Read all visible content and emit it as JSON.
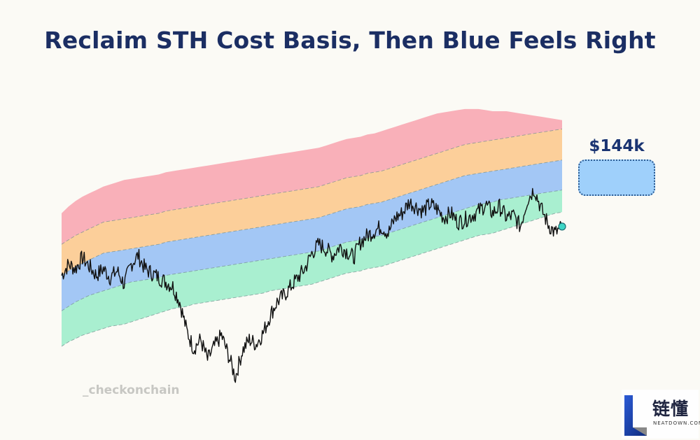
{
  "title": "Reclaim STH Cost Basis, Then Blue Feels Right",
  "callout": {
    "price": "$144k",
    "box_color": "#9fd0fb"
  },
  "watermark": "_checkonchain",
  "logo": {
    "name_cn": "链懂",
    "site": "NEATDOWN.COM"
  },
  "chart_data": {
    "type": "area",
    "x": [
      0,
      1,
      2,
      3,
      4,
      5,
      6,
      7,
      8,
      9,
      10,
      11,
      12,
      13,
      14,
      15,
      16,
      17,
      18,
      19,
      20,
      21,
      22,
      23,
      24,
      25,
      26,
      27,
      28,
      29,
      30,
      31,
      32,
      33,
      34,
      35,
      36,
      37,
      38,
      39,
      40,
      41,
      42,
      43,
      44,
      45,
      46,
      47,
      48,
      49,
      50,
      51,
      52,
      53,
      54,
      55,
      56,
      57,
      58,
      59,
      60,
      61,
      62,
      63,
      64,
      65,
      66,
      67,
      68,
      69,
      70,
      71,
      72
    ],
    "bands": [
      {
        "color": "#a9efd0",
        "lower": [
          -1.2,
          -1.0,
          -0.85,
          -0.7,
          -0.6,
          -0.5,
          -0.4,
          -0.3,
          -0.25,
          -0.2,
          -0.1,
          0,
          0.1,
          0.2,
          0.3,
          0.4,
          0.5,
          0.55,
          0.6,
          0.7,
          0.75,
          0.8,
          0.85,
          0.9,
          0.95,
          1.0,
          1.05,
          1.1,
          1.15,
          1.2,
          1.3,
          1.35,
          1.4,
          1.45,
          1.5,
          1.55,
          1.6,
          1.7,
          1.8,
          1.9,
          2.0,
          2.1,
          2.15,
          2.2,
          2.3,
          2.35,
          2.4,
          2.5,
          2.6,
          2.7,
          2.8,
          2.9,
          3.0,
          3.1,
          3.2,
          3.3,
          3.4,
          3.5,
          3.6,
          3.7,
          3.8,
          3.85,
          3.9,
          4.0,
          4.1,
          4.2,
          4.3,
          4.4,
          4.5,
          4.6,
          4.7,
          4.8,
          4.85
        ]
      },
      {
        "color": "#a3c7f5",
        "lower": [
          0.4,
          0.6,
          0.8,
          0.95,
          1.1,
          1.2,
          1.3,
          1.4,
          1.5,
          1.6,
          1.7,
          1.75,
          1.8,
          1.85,
          1.9,
          2.0,
          2.05,
          2.1,
          2.15,
          2.2,
          2.25,
          2.3,
          2.35,
          2.4,
          2.45,
          2.5,
          2.55,
          2.6,
          2.65,
          2.7,
          2.75,
          2.8,
          2.85,
          2.9,
          2.95,
          3.0,
          3.05,
          3.1,
          3.2,
          3.3,
          3.4,
          3.5,
          3.55,
          3.6,
          3.7,
          3.75,
          3.8,
          3.9,
          4.0,
          4.1,
          4.2,
          4.3,
          4.4,
          4.5,
          4.6,
          4.7,
          4.8,
          4.9,
          5.0,
          5.1,
          5.2,
          5.25,
          5.3,
          5.4,
          5.45,
          5.5,
          5.55,
          5.6,
          5.65,
          5.7,
          5.75,
          5.8,
          5.85
        ]
      },
      {
        "color": "#fccf9a",
        "lower": [
          2.0,
          2.2,
          2.4,
          2.55,
          2.7,
          2.85,
          3.0,
          3.05,
          3.1,
          3.15,
          3.2,
          3.25,
          3.3,
          3.35,
          3.4,
          3.5,
          3.55,
          3.6,
          3.65,
          3.7,
          3.75,
          3.8,
          3.85,
          3.9,
          3.95,
          4.0,
          4.05,
          4.1,
          4.15,
          4.2,
          4.25,
          4.3,
          4.35,
          4.4,
          4.45,
          4.5,
          4.55,
          4.6,
          4.7,
          4.8,
          4.9,
          5.0,
          5.05,
          5.1,
          5.2,
          5.25,
          5.3,
          5.4,
          5.5,
          5.6,
          5.7,
          5.8,
          5.9,
          6.0,
          6.1,
          6.2,
          6.3,
          6.4,
          6.5,
          6.55,
          6.6,
          6.65,
          6.7,
          6.75,
          6.8,
          6.85,
          6.9,
          6.95,
          7.0,
          7.05,
          7.1,
          7.15,
          7.2
        ]
      },
      {
        "color": "#f9b0b9",
        "lower": [
          3.4,
          3.6,
          3.8,
          3.95,
          4.1,
          4.25,
          4.4,
          4.45,
          4.5,
          4.55,
          4.6,
          4.65,
          4.7,
          4.75,
          4.8,
          4.9,
          4.95,
          5.0,
          5.05,
          5.1,
          5.15,
          5.2,
          5.25,
          5.3,
          5.35,
          5.4,
          5.45,
          5.5,
          5.55,
          5.6,
          5.65,
          5.7,
          5.75,
          5.8,
          5.85,
          5.9,
          5.95,
          6.0,
          6.1,
          6.2,
          6.3,
          6.4,
          6.45,
          6.5,
          6.6,
          6.65,
          6.7,
          6.8,
          6.9,
          7.0,
          7.1,
          7.2,
          7.3,
          7.4,
          7.5,
          7.6,
          7.7,
          7.8,
          7.9,
          7.95,
          8.0,
          8.05,
          8.1,
          8.15,
          8.2,
          8.25,
          8.3,
          8.35,
          8.4,
          8.45,
          8.5,
          8.55,
          8.6
        ],
        "upper": [
          4.8,
          5.1,
          5.35,
          5.55,
          5.7,
          5.85,
          6.0,
          6.1,
          6.2,
          6.3,
          6.35,
          6.4,
          6.45,
          6.5,
          6.55,
          6.65,
          6.7,
          6.75,
          6.8,
          6.85,
          6.9,
          6.95,
          7.0,
          7.05,
          7.1,
          7.15,
          7.2,
          7.25,
          7.3,
          7.35,
          7.4,
          7.45,
          7.5,
          7.55,
          7.6,
          7.65,
          7.7,
          7.75,
          7.85,
          7.95,
          8.05,
          8.15,
          8.2,
          8.25,
          8.35,
          8.4,
          8.5,
          8.6,
          8.7,
          8.8,
          8.9,
          9.0,
          9.1,
          9.2,
          9.3,
          9.35,
          9.4,
          9.45,
          9.5,
          9.5,
          9.5,
          9.45,
          9.4,
          9.4,
          9.4,
          9.35,
          9.3,
          9.25,
          9.2,
          9.15,
          9.1,
          9.05,
          9.0
        ]
      }
    ],
    "price": [
      2.0,
      2.5,
      2.3,
      2.8,
      2.4,
      2.0,
      2.3,
      1.9,
      2.2,
      1.6,
      2.5,
      2.9,
      2.3,
      2.1,
      1.9,
      1.7,
      1.5,
      0.8,
      -0.5,
      -1.3,
      -0.9,
      -1.8,
      -1.2,
      -0.7,
      -1.6,
      -2.6,
      -1.4,
      -0.9,
      -1.1,
      -0.6,
      0.2,
      0.8,
      1.1,
      1.5,
      1.9,
      2.3,
      3.0,
      3.4,
      3.2,
      2.9,
      3.3,
      3.1,
      2.8,
      3.5,
      3.8,
      4.0,
      4.2,
      3.9,
      4.6,
      4.8,
      5.3,
      5.1,
      4.9,
      5.2,
      5.0,
      4.6,
      4.8,
      4.4,
      4.5,
      4.7,
      4.9,
      5.2,
      4.8,
      5.1,
      4.6,
      4.7,
      4.2,
      5.4,
      5.9,
      5.0,
      4.3,
      3.9,
      4.2
    ],
    "last_point": {
      "x": 72,
      "y": 4.2,
      "color": "#3ed6c6"
    },
    "ylim": [
      -3.5,
      10
    ]
  }
}
